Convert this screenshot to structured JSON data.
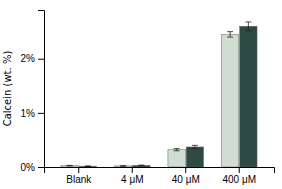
{
  "chart_data": {
    "type": "bar",
    "categories": [
      "Blank",
      "4 μM",
      "40 μM",
      "400 μM"
    ],
    "series": [
      {
        "color": "#d0ddd0",
        "values": [
          0.025,
          0.02,
          0.32,
          2.45
        ],
        "errors": [
          0.005,
          0.005,
          0.02,
          0.05
        ]
      },
      {
        "color": "#2d4a45",
        "values": [
          0.015,
          0.03,
          0.37,
          2.6
        ],
        "errors": [
          0.005,
          0.005,
          0.03,
          0.08
        ]
      }
    ],
    "ylabel": "Calcein (wt. %)",
    "ylim": [
      0,
      2.9
    ],
    "yticks": [
      {
        "value": 0,
        "label": "0%"
      },
      {
        "value": 1,
        "label": "1%"
      },
      {
        "value": 2,
        "label": "2%"
      }
    ]
  }
}
